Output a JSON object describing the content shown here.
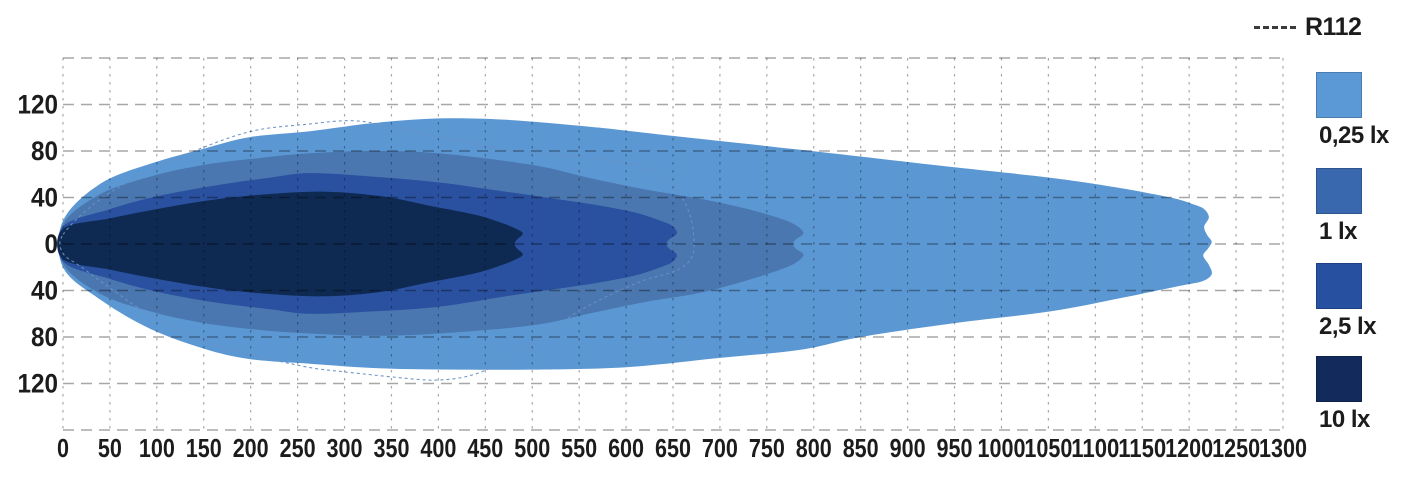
{
  "page": {
    "background": "#ffffff"
  },
  "legend": {
    "r112_label": "R112",
    "r112_dash_color": "#3b3b3b",
    "items": [
      {
        "label": "0,25 lx",
        "swatch": "#5b99d6"
      },
      {
        "label": "1 lx",
        "swatch": "#3a68ae"
      },
      {
        "label": "2,5 lx",
        "swatch": "#2750a0"
      },
      {
        "label": "10 lx",
        "swatch": "#122a5c"
      }
    ]
  },
  "chart_data": {
    "type": "area",
    "title": "",
    "xlabel": "",
    "ylabel": "",
    "x_range": [
      0,
      1300
    ],
    "y_range": [
      -160,
      160
    ],
    "grid": true,
    "legend_position": "right",
    "axis_text_color": "#1c1c1c",
    "grid_color": "#000000",
    "x_ticks": [
      0,
      50,
      100,
      150,
      200,
      250,
      300,
      350,
      400,
      450,
      500,
      550,
      600,
      650,
      700,
      750,
      800,
      850,
      900,
      950,
      1000,
      1050,
      1100,
      1150,
      1200,
      1250,
      1300
    ],
    "y_tick_labels": [
      {
        "value": 120,
        "label": "120"
      },
      {
        "value": 80,
        "label": "80"
      },
      {
        "value": 40,
        "label": "40"
      },
      {
        "value": 0,
        "label": "0"
      },
      {
        "value": -40,
        "label": "40"
      },
      {
        "value": -80,
        "label": "80"
      },
      {
        "value": -120,
        "label": "120"
      }
    ],
    "y_grid_values": [
      160,
      120,
      80,
      40,
      0,
      -40,
      -80,
      -120,
      -160
    ],
    "series": [
      {
        "name": "0,25 lx",
        "fill": "#5b98d3",
        "points": [
          [
            0,
            20
          ],
          [
            40,
            52
          ],
          [
            93,
            69
          ],
          [
            150,
            82
          ],
          [
            199,
            92
          ],
          [
            263,
            97
          ],
          [
            330,
            104
          ],
          [
            400,
            108
          ],
          [
            470,
            107
          ],
          [
            560,
            101
          ],
          [
            650,
            93
          ],
          [
            786,
            81
          ],
          [
            950,
            66
          ],
          [
            1052,
            57
          ],
          [
            1120,
            49
          ],
          [
            1180,
            40
          ],
          [
            1205,
            34
          ],
          [
            1216,
            30
          ],
          [
            1221,
            23
          ],
          [
            1216,
            15
          ],
          [
            1219,
            8
          ],
          [
            1224,
            2
          ],
          [
            1220,
            -4
          ],
          [
            1215,
            -10
          ],
          [
            1221,
            -18
          ],
          [
            1224,
            -26
          ],
          [
            1214,
            -32
          ],
          [
            1190,
            -36
          ],
          [
            1130,
            -46
          ],
          [
            1052,
            -58
          ],
          [
            950,
            -68
          ],
          [
            850,
            -80
          ],
          [
            786,
            -91
          ],
          [
            700,
            -98
          ],
          [
            600,
            -106
          ],
          [
            500,
            -108
          ],
          [
            420,
            -108
          ],
          [
            340,
            -107
          ],
          [
            263,
            -103
          ],
          [
            199,
            -99
          ],
          [
            150,
            -90
          ],
          [
            93,
            -73
          ],
          [
            40,
            -48
          ],
          [
            0,
            -20
          ]
        ]
      },
      {
        "name": "1 lx",
        "fill": "#4a77af",
        "points": [
          [
            0,
            17
          ],
          [
            40,
            43
          ],
          [
            93,
            58
          ],
          [
            150,
            68
          ],
          [
            210,
            74
          ],
          [
            263,
            78
          ],
          [
            330,
            80
          ],
          [
            400,
            78
          ],
          [
            500,
            68
          ],
          [
            560,
            57
          ],
          [
            620,
            47
          ],
          [
            679,
            39
          ],
          [
            730,
            30
          ],
          [
            768,
            21
          ],
          [
            783,
            15
          ],
          [
            789,
            9
          ],
          [
            781,
            4
          ],
          [
            778,
            0
          ],
          [
            781,
            -4
          ],
          [
            789,
            -9
          ],
          [
            783,
            -15
          ],
          [
            768,
            -21
          ],
          [
            730,
            -31
          ],
          [
            679,
            -42
          ],
          [
            620,
            -50
          ],
          [
            560,
            -60
          ],
          [
            500,
            -70
          ],
          [
            400,
            -77
          ],
          [
            330,
            -79
          ],
          [
            263,
            -77
          ],
          [
            210,
            -74
          ],
          [
            150,
            -68
          ],
          [
            93,
            -58
          ],
          [
            40,
            -43
          ],
          [
            0,
            -17
          ]
        ]
      },
      {
        "name": "2,5 lx",
        "fill": "#2a50a0",
        "points": [
          [
            0,
            15
          ],
          [
            50,
            30
          ],
          [
            100,
            41
          ],
          [
            160,
            50
          ],
          [
            220,
            57
          ],
          [
            263,
            61
          ],
          [
            330,
            58
          ],
          [
            400,
            53
          ],
          [
            480,
            44
          ],
          [
            540,
            37
          ],
          [
            572,
            33
          ],
          [
            610,
            27
          ],
          [
            640,
            19
          ],
          [
            650,
            15
          ],
          [
            654,
            9
          ],
          [
            646,
            4
          ],
          [
            643,
            0
          ],
          [
            646,
            -4
          ],
          [
            654,
            -9
          ],
          [
            650,
            -15
          ],
          [
            640,
            -19
          ],
          [
            610,
            -27
          ],
          [
            572,
            -33
          ],
          [
            540,
            -37
          ],
          [
            480,
            -44
          ],
          [
            400,
            -54
          ],
          [
            330,
            -58
          ],
          [
            263,
            -60
          ],
          [
            220,
            -56
          ],
          [
            160,
            -50
          ],
          [
            100,
            -41
          ],
          [
            50,
            -30
          ],
          [
            0,
            -15
          ]
        ]
      },
      {
        "name": "10 lx",
        "fill": "#0e2a52",
        "points": [
          [
            0,
            13
          ],
          [
            50,
            22
          ],
          [
            100,
            30
          ],
          [
            160,
            38
          ],
          [
            220,
            43
          ],
          [
            280,
            45
          ],
          [
            340,
            41
          ],
          [
            390,
            33
          ],
          [
            440,
            25
          ],
          [
            468,
            18
          ],
          [
            483,
            13
          ],
          [
            490,
            9
          ],
          [
            484,
            4
          ],
          [
            481,
            0
          ],
          [
            484,
            -4
          ],
          [
            490,
            -9
          ],
          [
            483,
            -13
          ],
          [
            468,
            -18
          ],
          [
            440,
            -25
          ],
          [
            390,
            -33
          ],
          [
            340,
            -41
          ],
          [
            280,
            -45
          ],
          [
            220,
            -43
          ],
          [
            160,
            -38
          ],
          [
            100,
            -30
          ],
          [
            50,
            -22
          ],
          [
            0,
            -13
          ]
        ]
      }
    ],
    "reference_line": {
      "name": "R112",
      "color": "#6a90c6",
      "points": [
        [
          0,
          8
        ],
        [
          34,
          35
        ],
        [
          80,
          58
        ],
        [
          140,
          80
        ],
        [
          201,
          97
        ],
        [
          260,
          103
        ],
        [
          311,
          106
        ],
        [
          360,
          99
        ],
        [
          420,
          89
        ],
        [
          480,
          80
        ],
        [
          560,
          74
        ],
        [
          610,
          68
        ],
        [
          640,
          58
        ],
        [
          658,
          42
        ],
        [
          668,
          25
        ],
        [
          672,
          8
        ],
        [
          672,
          -6
        ],
        [
          666,
          -16
        ],
        [
          650,
          -24
        ],
        [
          620,
          -31
        ],
        [
          585,
          -43
        ],
        [
          551,
          -57
        ],
        [
          520,
          -74
        ],
        [
          490,
          -90
        ],
        [
          460,
          -105
        ],
        [
          430,
          -114
        ],
        [
          400,
          -117
        ],
        [
          372,
          -116
        ],
        [
          300,
          -110
        ],
        [
          261,
          -106
        ],
        [
          200,
          -95
        ],
        [
          151,
          -83
        ],
        [
          100,
          -65
        ],
        [
          52,
          -39
        ],
        [
          20,
          -20
        ],
        [
          0,
          -8
        ]
      ]
    }
  }
}
